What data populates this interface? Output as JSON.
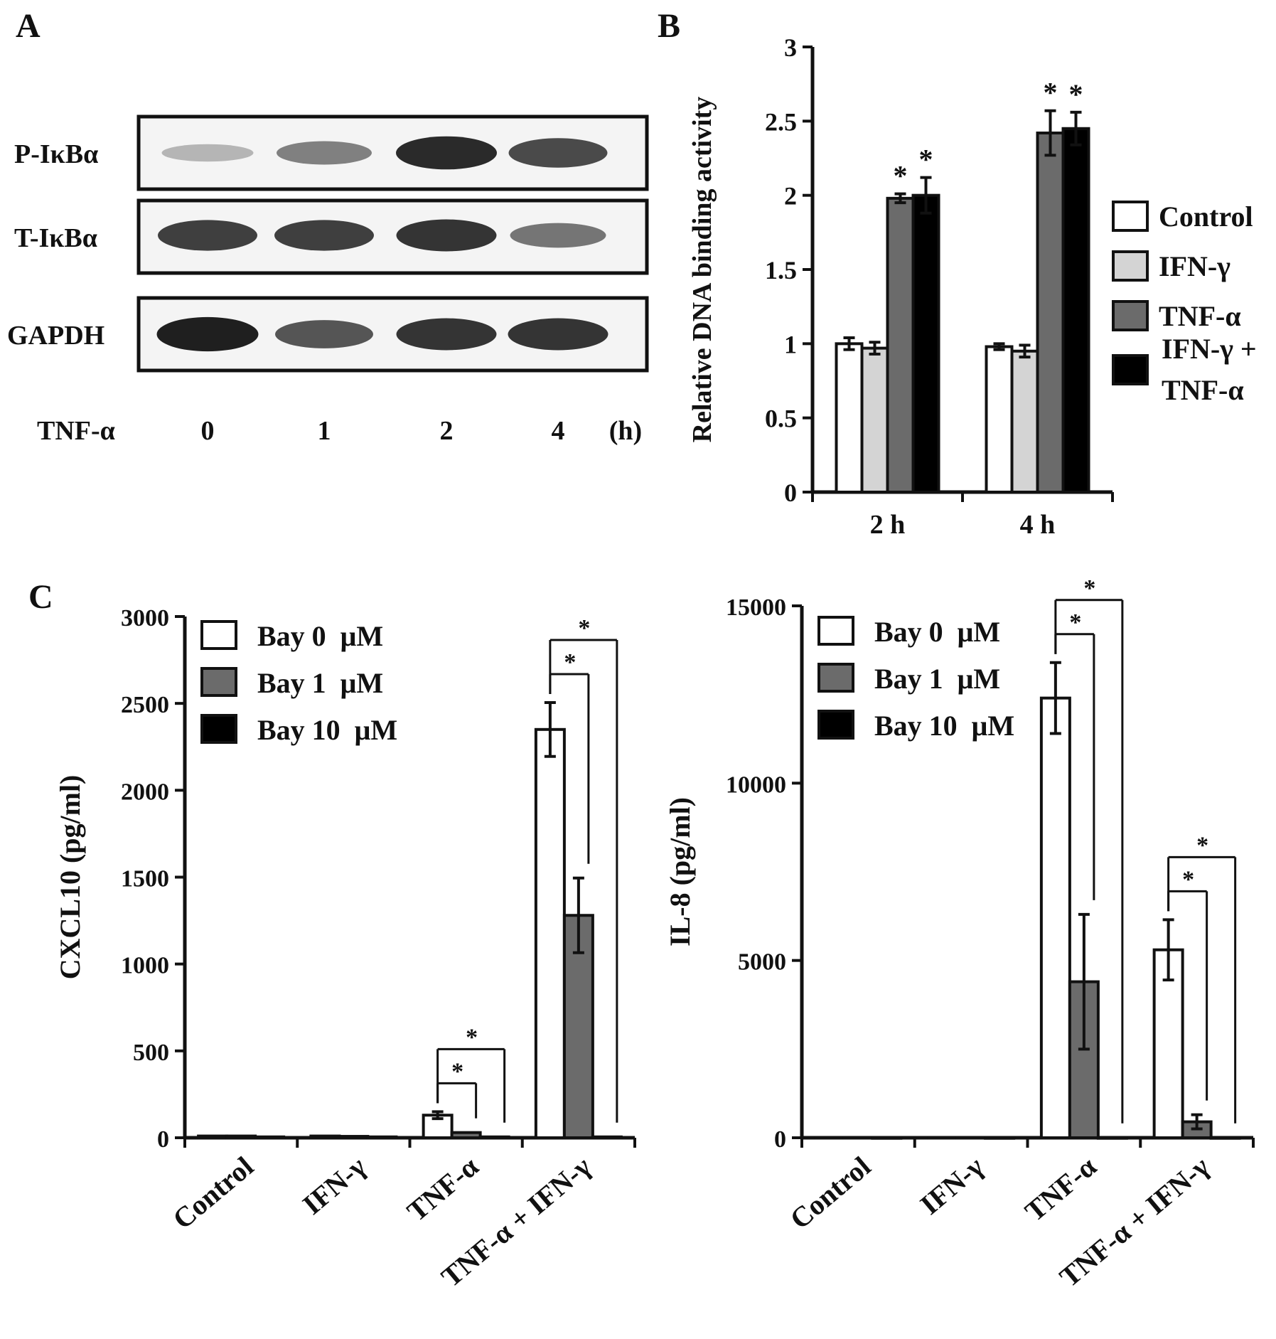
{
  "panel_letters": {
    "a": "A",
    "b": "B",
    "c": "C"
  },
  "western_blot": {
    "rows": [
      "P-IκBα",
      "T-IκBα",
      "GAPDH"
    ],
    "band_intensity": [
      [
        0.25,
        0.5,
        0.9,
        0.75
      ],
      [
        0.8,
        0.8,
        0.85,
        0.55
      ],
      [
        0.95,
        0.7,
        0.85,
        0.85
      ]
    ],
    "treatment_label": "TNF-α",
    "time_points": [
      "0",
      "1",
      "2",
      "4"
    ],
    "time_unit": "(h)"
  },
  "chart_data": [
    {
      "type": "bar",
      "panel": "B",
      "categories": [
        "2 h",
        "4 h"
      ],
      "ylabel": "Relative DNA binding activity",
      "ylim": [
        0,
        3
      ],
      "yticks": [
        "0",
        "0.5",
        "1",
        "1.5",
        "2",
        "2.5",
        "3"
      ],
      "series": [
        {
          "name": "Control",
          "values": [
            1.0,
            0.98
          ],
          "errors": [
            0.04,
            0.02
          ],
          "color": "#ffffff"
        },
        {
          "name": "IFN-γ",
          "values": [
            0.97,
            0.95
          ],
          "errors": [
            0.04,
            0.04
          ],
          "color": "#d4d4d4"
        },
        {
          "name": "TNF-α",
          "values": [
            1.98,
            2.42
          ],
          "errors": [
            0.03,
            0.15
          ],
          "color": "#6b6b6b"
        },
        {
          "name": "IFN-γ + TNF-α",
          "legend_lines": [
            "IFN-γ +",
            "TNF-α"
          ],
          "values": [
            2.0,
            2.45
          ],
          "errors": [
            0.12,
            0.11
          ],
          "color": "#000000"
        }
      ],
      "significance": [
        {
          "category": 0,
          "series": 2,
          "mark": "*"
        },
        {
          "category": 0,
          "series": 3,
          "mark": "*"
        },
        {
          "category": 1,
          "series": 2,
          "mark": "*"
        },
        {
          "category": 1,
          "series": 3,
          "mark": "*"
        }
      ]
    },
    {
      "type": "bar",
      "panel": "C-left",
      "categories": [
        "Control",
        "IFN-γ",
        "TNF-α",
        "TNF-α + IFN-γ"
      ],
      "ylabel": "CXCL10 (pg/ml)",
      "ylim": [
        0,
        3000
      ],
      "yticks": [
        "0",
        "500",
        "1000",
        "1500",
        "2000",
        "2500",
        "3000"
      ],
      "series": [
        {
          "name": "Bay 0  μM",
          "values": [
            10,
            10,
            130,
            2350
          ],
          "errors": [
            0,
            0,
            20,
            155
          ],
          "color": "#ffffff"
        },
        {
          "name": "Bay 1  μM",
          "values": [
            10,
            8,
            30,
            1280
          ],
          "errors": [
            0,
            0,
            0,
            215
          ],
          "color": "#6b6b6b"
        },
        {
          "name": "Bay 10  μM",
          "values": [
            5,
            5,
            5,
            5
          ],
          "errors": [
            0,
            0,
            0,
            0
          ],
          "color": "#000000"
        }
      ],
      "significance": [
        {
          "category": 2,
          "from": 0,
          "to": 1,
          "mark": "*"
        },
        {
          "category": 2,
          "from": 0,
          "to": 2,
          "mark": "*"
        },
        {
          "category": 3,
          "from": 0,
          "to": 1,
          "mark": "*"
        },
        {
          "category": 3,
          "from": 0,
          "to": 2,
          "mark": "*"
        }
      ]
    },
    {
      "type": "bar",
      "panel": "C-right",
      "categories": [
        "Control",
        "IFN-γ",
        "TNF-α",
        "TNF-α + IFN-γ"
      ],
      "ylabel": "IL-8 (pg/ml)",
      "ylim": [
        0,
        15000
      ],
      "yticks": [
        "0",
        "5000",
        "10000",
        "15000"
      ],
      "series": [
        {
          "name": "Bay 0  μM",
          "values": [
            10,
            10,
            12400,
            5300
          ],
          "errors": [
            0,
            0,
            1000,
            850
          ],
          "color": "#ffffff"
        },
        {
          "name": "Bay 1  μM",
          "values": [
            10,
            10,
            4400,
            450
          ],
          "errors": [
            0,
            0,
            1900,
            200
          ],
          "color": "#6b6b6b"
        },
        {
          "name": "Bay 10  μM",
          "values": [
            5,
            5,
            5,
            5
          ],
          "errors": [
            0,
            0,
            0,
            0
          ],
          "color": "#000000"
        }
      ],
      "significance": [
        {
          "category": 2,
          "from": 0,
          "to": 1,
          "mark": "*"
        },
        {
          "category": 2,
          "from": 0,
          "to": 2,
          "mark": "*"
        },
        {
          "category": 3,
          "from": 0,
          "to": 1,
          "mark": "*"
        },
        {
          "category": 3,
          "from": 0,
          "to": 2,
          "mark": "*"
        }
      ]
    }
  ]
}
